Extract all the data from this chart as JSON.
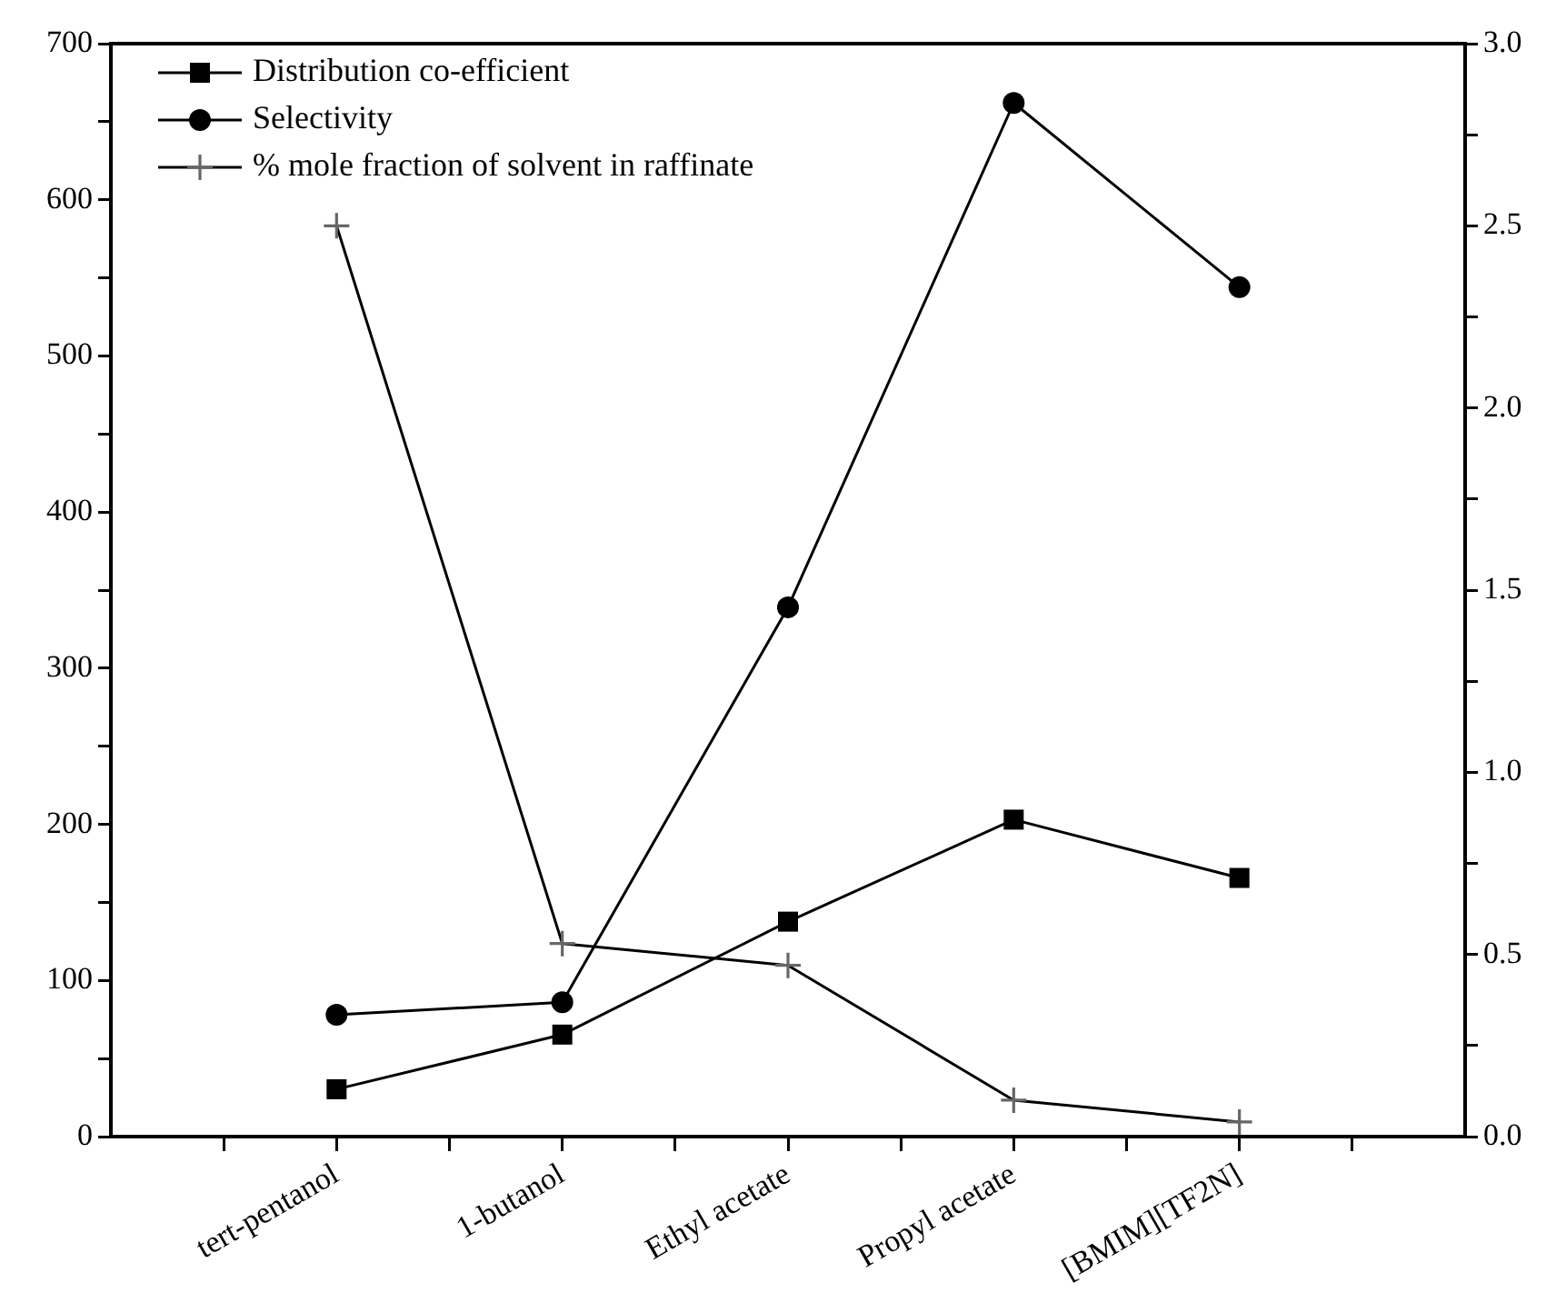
{
  "chart_data": {
    "type": "line",
    "categories": [
      "tert-pentanol",
      "1-butanol",
      "Ethyl acetate",
      "Propyl acetate",
      "[BMIM][TF2N]"
    ],
    "series": [
      {
        "name": "Distribution co-efficient",
        "color": "#000000",
        "marker": "square",
        "axis": "y2",
        "values": [
          0.13,
          0.28,
          0.59,
          0.87,
          0.71
        ]
      },
      {
        "name": "Selectivity",
        "color": "#000000",
        "marker": "circle",
        "values": [
          78,
          86,
          339,
          662,
          544
        ]
      },
      {
        "name": "% mole fraction of solvent in raffinate",
        "color": "#000000",
        "marker": "cross",
        "axis": "y2",
        "values": [
          2.5,
          0.53,
          0.47,
          0.1,
          0.04
        ]
      }
    ],
    "ylim": [
      0,
      700
    ],
    "yticks": [
      0,
      {
        "value": 50,
        "label": null
      },
      100,
      {
        "value": 150,
        "label": null
      },
      200,
      {
        "value": 250,
        "label": null
      },
      300,
      {
        "value": 350,
        "label": null
      },
      400,
      {
        "value": 450,
        "label": null
      },
      500,
      {
        "value": 550,
        "label": null
      },
      600,
      {
        "value": 650,
        "label": null
      },
      700
    ],
    "y2lim": [
      0,
      3
    ],
    "y2ticks": [
      {
        "value": 0,
        "label": "0.0"
      },
      {
        "value": 0.25,
        "label": null
      },
      {
        "value": 0.5,
        "label": "0.5"
      },
      {
        "value": 0.75,
        "label": null
      },
      {
        "value": 1,
        "label": "1.0"
      },
      {
        "value": 1.25,
        "label": null
      },
      {
        "value": 1.5,
        "label": "1.5"
      },
      {
        "value": 1.75,
        "label": null
      },
      {
        "value": 2,
        "label": "2.0"
      },
      {
        "value": 2.25,
        "label": null
      },
      {
        "value": 2.5,
        "label": "2.5"
      },
      {
        "value": 2.75,
        "label": null
      },
      {
        "value": 3,
        "label": "3.0"
      }
    ],
    "legend": "top left",
    "grid": false,
    "line_style": "solid"
  }
}
